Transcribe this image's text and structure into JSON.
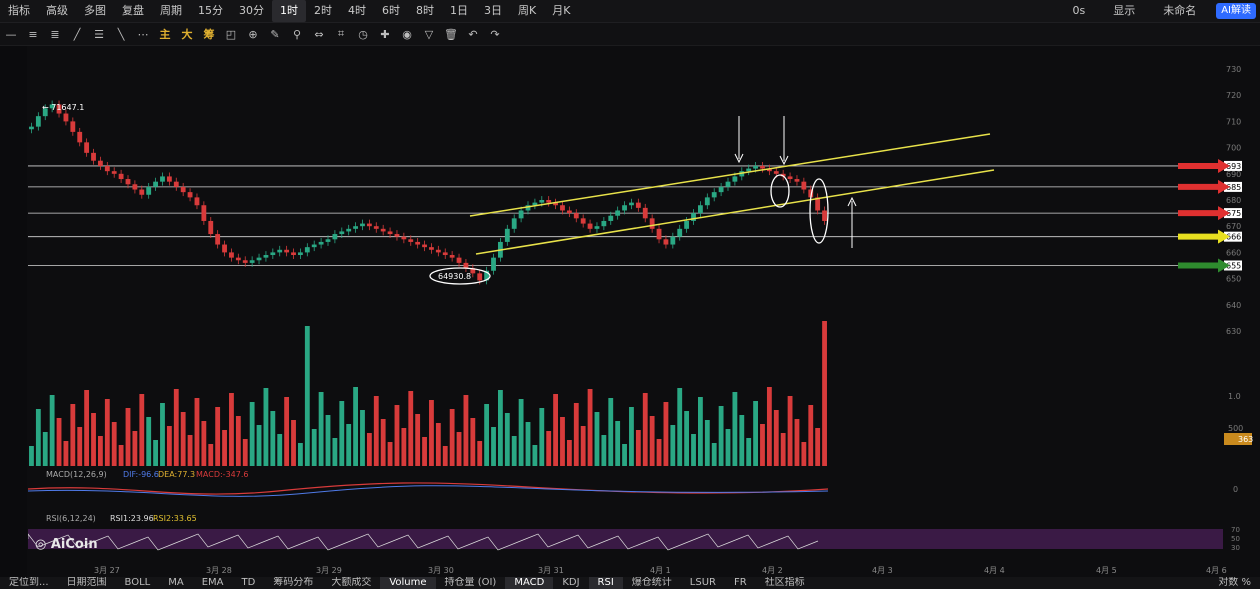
{
  "toolbar": {
    "items": [
      "指标",
      "高级",
      "多图",
      "复盘",
      "周期",
      "15分",
      "30分",
      "1时",
      "2时",
      "4时",
      "6时",
      "8时",
      "1日",
      "3日",
      "周K",
      "月K"
    ],
    "active": "1时",
    "right": {
      "latency": "0s",
      "display": "显示",
      "name": "未命名",
      "ai": "AI解读"
    }
  },
  "drawbar": {
    "highlights": [
      "主",
      "大",
      "筹"
    ]
  },
  "chart_data": {
    "type": "candlestick",
    "x_ticks": [
      "3月 27",
      "3月 28",
      "3月 29",
      "3月 30",
      "3月 31",
      "4月 1",
      "4月 2",
      "4月 3",
      "4月 4",
      "4月 5",
      "4月 6"
    ],
    "price_axis_ticks": [
      "730",
      "720",
      "710",
      "700",
      "690",
      "680",
      "670",
      "660",
      "650",
      "640",
      "630"
    ],
    "high_label": "71647.1",
    "low_label": "64930.8",
    "level_labels": [
      "693",
      "685",
      "675",
      "666",
      "655"
    ],
    "level_colors": [
      "#e03030",
      "#e03030",
      "#e03030",
      "#e8e020",
      "#2e8b2e"
    ],
    "close": [
      70800,
      71200,
      71500,
      71647,
      71300,
      71000,
      70600,
      70200,
      69800,
      69500,
      69300,
      69100,
      69000,
      68800,
      68600,
      68400,
      68200,
      68500,
      68700,
      68900,
      68700,
      68500,
      68300,
      68100,
      67800,
      67200,
      66700,
      66300,
      66000,
      65800,
      65700,
      65600,
      65700,
      65800,
      65900,
      66000,
      66100,
      66000,
      65900,
      66000,
      66200,
      66300,
      66400,
      66500,
      66700,
      66800,
      66900,
      67000,
      67100,
      67000,
      66900,
      66800,
      66700,
      66600,
      66500,
      66400,
      66300,
      66200,
      66100,
      66000,
      65900,
      65800,
      65600,
      65400,
      65200,
      64931,
      65300,
      65800,
      66400,
      66900,
      67300,
      67600,
      67800,
      67900,
      68000,
      67900,
      67800,
      67600,
      67500,
      67300,
      67100,
      66900,
      67000,
      67200,
      67400,
      67600,
      67800,
      67900,
      67700,
      67300,
      66900,
      66500,
      66300,
      66600,
      66900,
      67200,
      67500,
      67800,
      68100,
      68300,
      68500,
      68700,
      68900,
      69100,
      69200,
      69300,
      69200,
      69100,
      69000,
      68900,
      68800,
      68700,
      68400,
      68100,
      67600,
      67200
    ],
    "volume_axis_labels": [
      "1.0",
      "500"
    ],
    "volume_badge": "363",
    "macd": {
      "label": "MACD(12,26,9)",
      "dif": "DIF:-96.6",
      "dea": "DEA:77.3",
      "macd": "MACD:-347.6",
      "axis": "0"
    },
    "rsi": {
      "label": "RSI(6,12,24)",
      "rsi1": "RSI1:23.96",
      "rsi2": "RSI2:33.65",
      "axis": [
        "70",
        "50",
        "30"
      ]
    }
  },
  "logo": "AiCoin",
  "bottombar": {
    "left": [
      "定位到...",
      "日期范围"
    ],
    "items": [
      "BOLL",
      "MA",
      "EMA",
      "TD",
      "筹码分布",
      "大额成交",
      "Volume",
      "持仓量 (OI)",
      "MACD",
      "KDJ",
      "RSI",
      "爆仓统计",
      "LSUR",
      "FR",
      "社区指标"
    ],
    "active": [
      "Volume",
      "MACD",
      "RSI"
    ],
    "right": [
      "对数",
      "%"
    ]
  },
  "colors": {
    "up": "#2aa884",
    "down": "#d83b3b",
    "channel": "#e8e24a",
    "hline": "#d8d8d8"
  }
}
